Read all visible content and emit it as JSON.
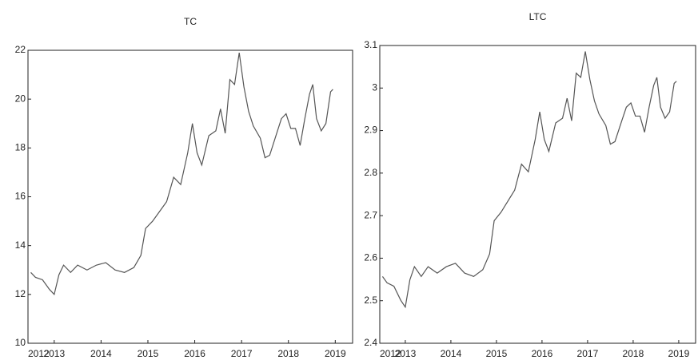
{
  "chart_data": [
    {
      "type": "line",
      "title": "TC",
      "x": [
        2012.5,
        2012.6,
        2012.75,
        2012.9,
        2013.0,
        2013.1,
        2013.2,
        2013.35,
        2013.5,
        2013.7,
        2013.9,
        2014.1,
        2014.3,
        2014.5,
        2014.7,
        2014.85,
        2014.95,
        2015.1,
        2015.25,
        2015.4,
        2015.55,
        2015.7,
        2015.85,
        2015.95,
        2016.05,
        2016.15,
        2016.3,
        2016.45,
        2016.55,
        2016.65,
        2016.75,
        2016.85,
        2016.95,
        2017.05,
        2017.15,
        2017.25,
        2017.4,
        2017.5,
        2017.6,
        2017.75,
        2017.85,
        2017.95,
        2018.05,
        2018.15,
        2018.25,
        2018.35,
        2018.45,
        2018.52,
        2018.6,
        2018.7,
        2018.8,
        2018.9,
        2018.95
      ],
      "series": [
        {
          "name": "TC",
          "color": "#555555",
          "values": [
            12.9,
            12.7,
            12.6,
            12.2,
            12.0,
            12.8,
            13.2,
            12.9,
            13.2,
            13.0,
            13.2,
            13.3,
            13.0,
            12.9,
            13.1,
            13.6,
            14.7,
            15.0,
            15.4,
            15.8,
            16.8,
            16.5,
            17.8,
            19.0,
            17.8,
            17.3,
            18.5,
            18.7,
            19.6,
            18.6,
            20.8,
            20.6,
            21.9,
            20.5,
            19.5,
            18.9,
            18.4,
            17.6,
            17.7,
            18.6,
            19.2,
            19.4,
            18.8,
            18.8,
            18.1,
            19.2,
            20.2,
            20.6,
            19.2,
            18.7,
            19.0,
            20.3,
            20.4
          ]
        }
      ],
      "xlim": [
        2012.44,
        2019.37
      ],
      "xticks": [
        {
          "value": 2012.44,
          "label": "2012"
        },
        2013,
        2014,
        2015,
        2016,
        2017,
        2018,
        2019
      ],
      "ylim": [
        10,
        22
      ],
      "yticks": [
        10,
        12,
        14,
        16,
        18,
        20,
        22
      ]
    },
    {
      "type": "line",
      "title": "LTC",
      "x": [
        2012.5,
        2012.6,
        2012.75,
        2012.9,
        2013.0,
        2013.1,
        2013.2,
        2013.35,
        2013.5,
        2013.7,
        2013.9,
        2014.1,
        2014.3,
        2014.5,
        2014.7,
        2014.85,
        2014.95,
        2015.1,
        2015.25,
        2015.4,
        2015.55,
        2015.7,
        2015.85,
        2015.95,
        2016.05,
        2016.15,
        2016.3,
        2016.45,
        2016.55,
        2016.65,
        2016.75,
        2016.85,
        2016.95,
        2017.05,
        2017.15,
        2017.25,
        2017.4,
        2017.5,
        2017.6,
        2017.75,
        2017.85,
        2017.95,
        2018.05,
        2018.15,
        2018.25,
        2018.35,
        2018.45,
        2018.52,
        2018.6,
        2018.7,
        2018.8,
        2018.9,
        2018.95
      ],
      "series": [
        {
          "name": "LTC",
          "color": "#555555",
          "values": [
            2.557,
            2.542,
            2.534,
            2.501,
            2.485,
            2.549,
            2.58,
            2.557,
            2.58,
            2.565,
            2.58,
            2.588,
            2.565,
            2.557,
            2.573,
            2.61,
            2.688,
            2.708,
            2.734,
            2.76,
            2.821,
            2.803,
            2.879,
            2.944,
            2.879,
            2.851,
            2.918,
            2.929,
            2.976,
            2.923,
            3.035,
            3.025,
            3.086,
            3.02,
            2.97,
            2.939,
            2.912,
            2.868,
            2.874,
            2.923,
            2.955,
            2.965,
            2.934,
            2.934,
            2.896,
            2.955,
            3.006,
            3.025,
            2.955,
            2.929,
            2.944,
            3.011,
            3.016
          ]
        }
      ],
      "xlim": [
        2012.44,
        2019.37
      ],
      "xticks": [
        {
          "value": 2012.44,
          "label": "2012"
        },
        2013,
        2014,
        2015,
        2016,
        2017,
        2018,
        2019
      ],
      "ylim": [
        2.4,
        3.1
      ],
      "yticks": [
        2.4,
        2.5,
        2.6,
        2.7,
        2.8,
        2.9,
        3.0,
        3.1
      ]
    }
  ]
}
